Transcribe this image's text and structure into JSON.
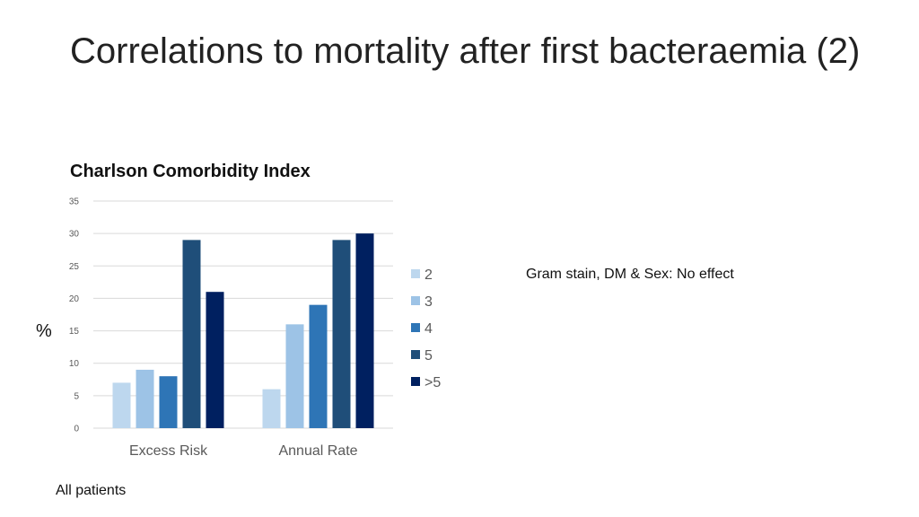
{
  "slide": {
    "title": "Correlations to mortality after first bacteraemia (2)",
    "y_unit": "%",
    "side_note": "Gram stain, DM & Sex: No effect",
    "footnote": "All patients"
  },
  "chart_data": {
    "type": "bar",
    "title": "Charlson Comorbidity Index",
    "categories": [
      "Excess Risk",
      "Annual Rate"
    ],
    "series": [
      {
        "name": "2",
        "values": [
          7,
          6
        ],
        "color": "#BDD7EE"
      },
      {
        "name": "3",
        "values": [
          9,
          16
        ],
        "color": "#9DC3E6"
      },
      {
        "name": "4",
        "values": [
          8,
          19
        ],
        "color": "#2E75B6"
      },
      {
        "name": "5",
        "values": [
          29,
          29
        ],
        "color": "#1F4E79"
      },
      {
        "name": ">5",
        "values": [
          21,
          30
        ],
        "color": "#002060"
      }
    ],
    "ylim": [
      0,
      35
    ],
    "yticks": [
      0,
      5,
      10,
      15,
      20,
      25,
      30,
      35
    ],
    "xlabel": "",
    "ylabel": "%",
    "grid": true,
    "legend": "right"
  }
}
